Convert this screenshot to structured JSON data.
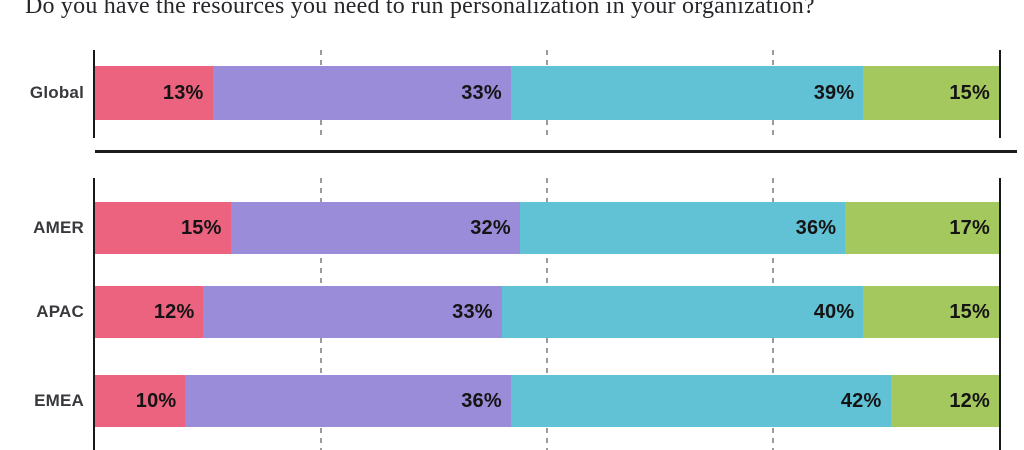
{
  "title": "Do you have the resources you need to run personalization in your organization?",
  "chart_data": {
    "type": "bar",
    "variant": "stacked-horizontal",
    "title": "Do you have the resources you need to run personalization in your organization?",
    "categories": [
      "Global",
      "AMER",
      "APAC",
      "EMEA"
    ],
    "series": [
      {
        "name": "pink",
        "color": "#EC6380",
        "values": [
          13,
          15,
          12,
          10
        ]
      },
      {
        "name": "purple",
        "color": "#9A8CD9",
        "values": [
          33,
          32,
          33,
          36
        ]
      },
      {
        "name": "teal",
        "color": "#61C2D6",
        "values": [
          39,
          36,
          40,
          42
        ]
      },
      {
        "name": "green",
        "color": "#A4C75E",
        "values": [
          15,
          17,
          15,
          12
        ]
      }
    ],
    "value_suffix": "%",
    "xlim": [
      0,
      100
    ],
    "gridlines": [
      25,
      50,
      75
    ],
    "grid_style": "dashed",
    "axis_edges": "solid",
    "first_row_separated_by_rule": true,
    "legend_position": "none-visible",
    "data_labels": "inside-right-of-each-segment"
  }
}
